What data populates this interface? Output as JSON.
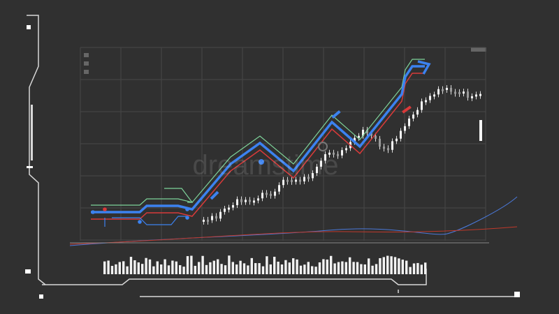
{
  "watermark": "dreamstime"
}
